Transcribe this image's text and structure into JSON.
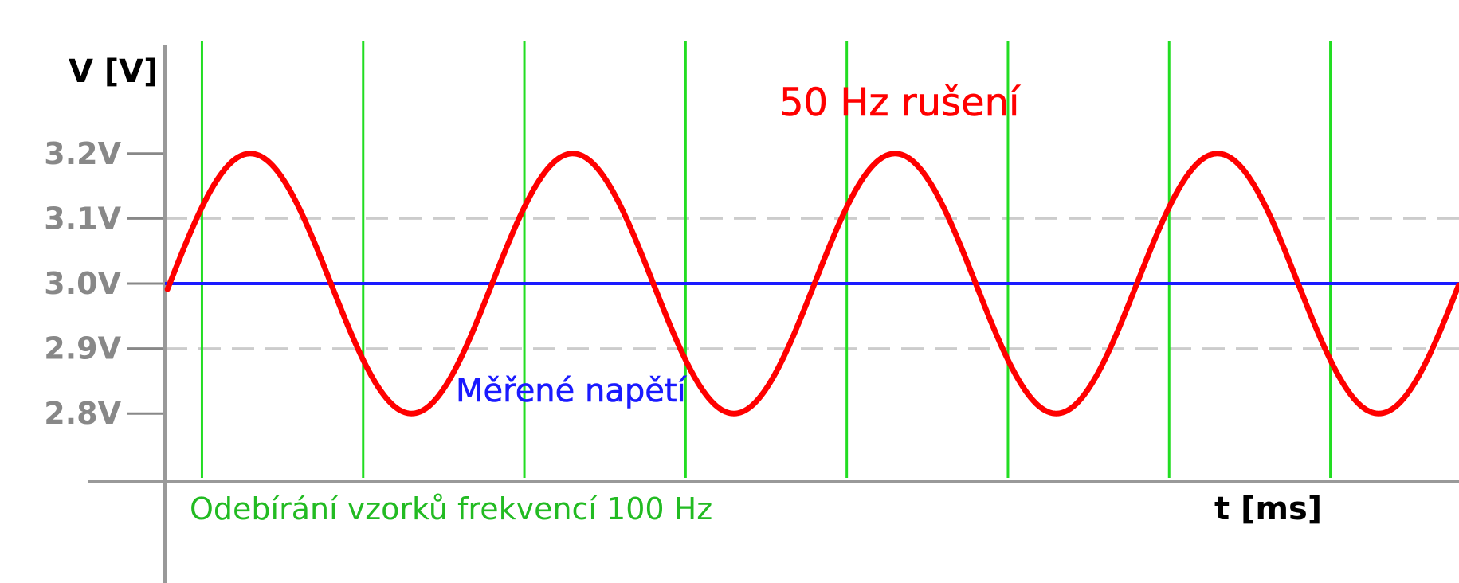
{
  "chart_data": {
    "type": "line",
    "ylabel": "V [V]",
    "xlabel": "t [ms]",
    "yticks": [
      "3.2V",
      "3.1V",
      "3.0V",
      "2.9V",
      "2.8V"
    ],
    "ytick_values": [
      3.2,
      3.1,
      3.0,
      2.9,
      2.8
    ],
    "dashed_gridlines_at": [
      3.1,
      2.9
    ],
    "xlim": [
      0,
      80
    ],
    "series": [
      {
        "name": "50 Hz rušení",
        "color": "#ff0000",
        "frequency_hz": 50,
        "offset_v": 3.0,
        "amplitude_v": 0.2
      },
      {
        "name": "Měřené napětí",
        "color": "#1a1aff",
        "constant_v": 3.0
      }
    ],
    "sampling": {
      "label": "Odebírání vzorků frekvencí 100 Hz",
      "color": "#22dd22",
      "frequency_hz": 100,
      "sample_times_ms": [
        2,
        12,
        22,
        32,
        42,
        52,
        62,
        72
      ]
    },
    "grid": false
  }
}
